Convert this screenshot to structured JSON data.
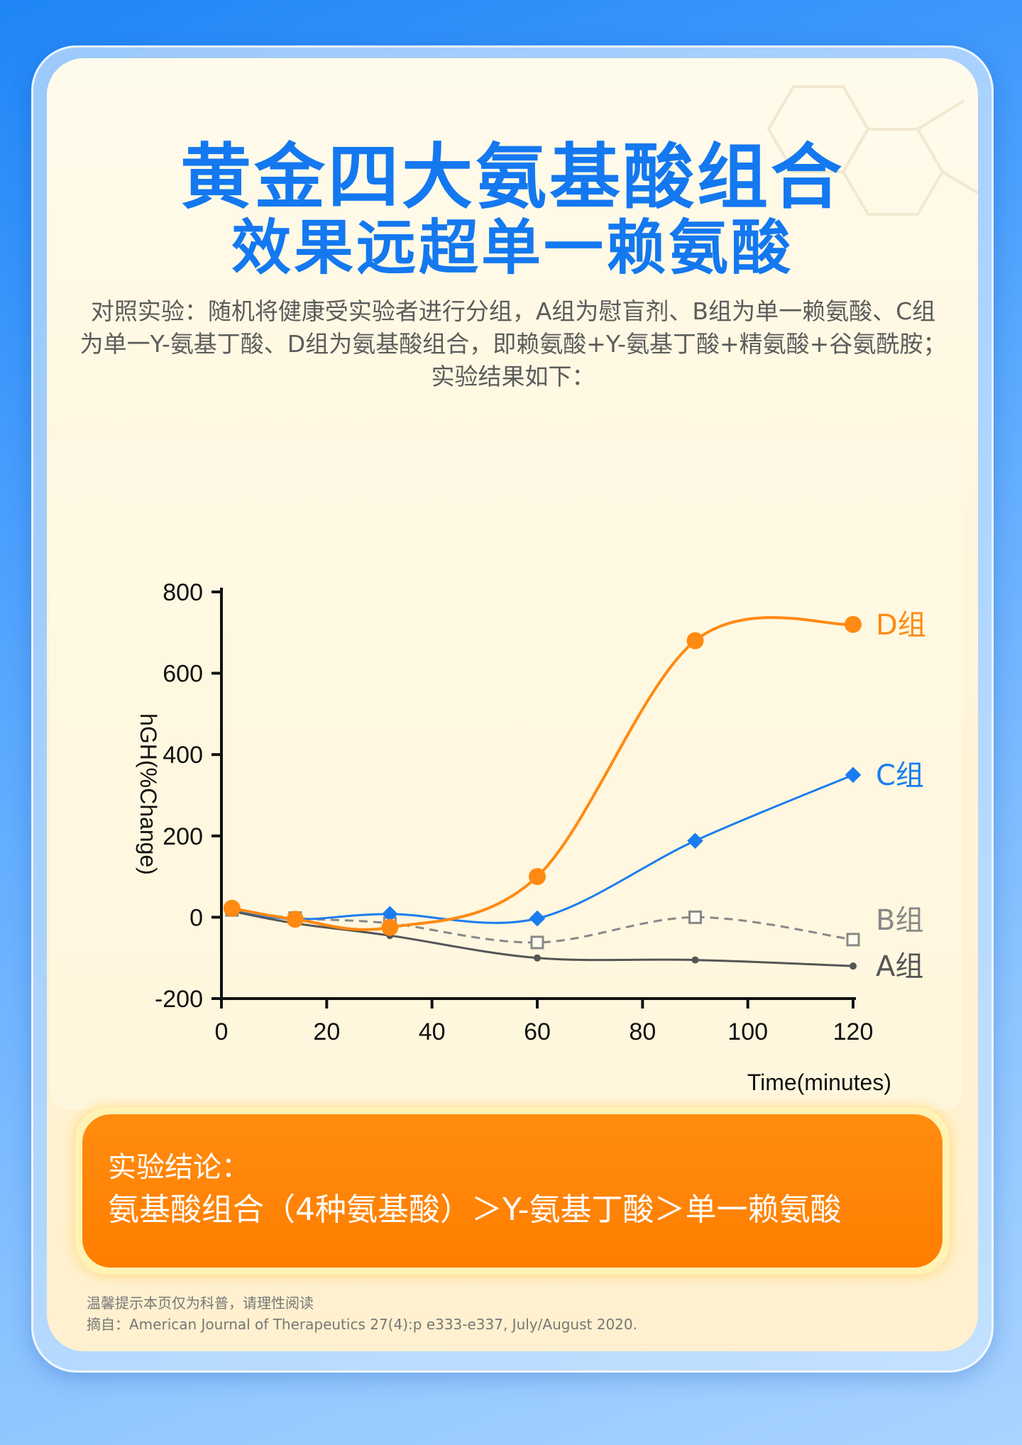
{
  "header": {
    "title": "黄金四大氨基酸组合",
    "subtitle": "效果远超单一赖氨酸"
  },
  "description": "对照实验：随机将健康受实验者进行分组，A组为慰盲剂、B组为单一赖氨酸、C组为单一Y-氨基丁酸、D组为氨基酸组合，即赖氨酸+Y-氨基丁酸+精氨酸+谷氨酰胺；实验结果如下：",
  "chart_data": {
    "type": "line",
    "ylabel": "hGH(%Change)",
    "xlabel": "Time(minutes)",
    "xlim": [
      0,
      120
    ],
    "ylim": [
      -200,
      800
    ],
    "x_ticks": [
      0,
      20,
      40,
      60,
      80,
      100,
      120
    ],
    "y_ticks": [
      -200,
      0,
      200,
      400,
      600,
      800
    ],
    "y_tick_labels": [
      "-200",
      "0",
      "200",
      "400",
      "600",
      "800"
    ],
    "grid": false,
    "series": [
      {
        "name": "D组",
        "color": "#ff8a12",
        "marker": "circle",
        "style": "solid",
        "x": [
          2,
          14,
          32,
          60,
          90,
          120
        ],
        "y": [
          22,
          -5,
          -25,
          100,
          680,
          720
        ]
      },
      {
        "name": "C组",
        "color": "#1a7cf0",
        "marker": "diamond",
        "style": "solid",
        "x": [
          2,
          14,
          32,
          60,
          90,
          120
        ],
        "y": [
          20,
          -5,
          8,
          -3,
          188,
          350
        ]
      },
      {
        "name": "B组",
        "color": "#888888",
        "marker": "square-open",
        "style": "dashed",
        "x": [
          2,
          14,
          32,
          60,
          90,
          120
        ],
        "y": [
          18,
          -2,
          -15,
          -62,
          0,
          -55
        ]
      },
      {
        "name": "A组",
        "color": "#555555",
        "marker": "dot",
        "style": "solid",
        "x": [
          2,
          14,
          32,
          60,
          90,
          120
        ],
        "y": [
          15,
          -15,
          -45,
          -100,
          -105,
          -120
        ]
      }
    ]
  },
  "conclusion": {
    "label": "实验结论：",
    "text": "氨基酸组合（4种氨基酸）＞Y-氨基丁酸＞单一赖氨酸"
  },
  "footer": {
    "note": "温馨提示本页仅为科普，请理性阅读",
    "source": "摘自：American Journal of Therapeutics 27(4):p e333-e337, July/August 2020."
  }
}
